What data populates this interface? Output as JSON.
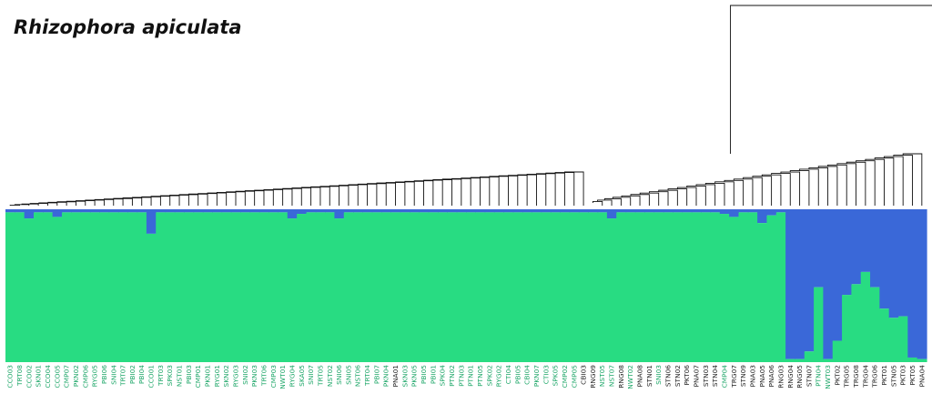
{
  "title": "Rhizophora apiculata",
  "chart_data": {
    "type": "bar",
    "subtype": "stacked-proportion bar plot (STRUCTURE K=2) with hierarchical clustering dendrogram above",
    "ylim": [
      0,
      1
    ],
    "colors": {
      "cluster_green": "#28dc82",
      "cluster_blue": "#3a68d8",
      "label_green": "#1aa566",
      "label_dark": "#222222"
    },
    "categories": [
      "CCO03",
      "TRT08",
      "CCO02",
      "SKN01",
      "CCO04",
      "CCO05",
      "CMP07",
      "PKN02",
      "CMP06",
      "RYG05",
      "PBI06",
      "SNI04",
      "TRT07",
      "PBI02",
      "PBI04",
      "CCO01",
      "TRT03",
      "SPK03",
      "NST01",
      "PBI03",
      "CMP01",
      "PKN01",
      "RYG01",
      "SKN02",
      "RYG03",
      "SNI02",
      "PKN03",
      "TRT06",
      "CMP03",
      "NWT01",
      "RYG04",
      "SKA05",
      "SNI07",
      "TRT05",
      "NST02",
      "SNI06",
      "SNI05",
      "NST06",
      "TRT04",
      "PBI07",
      "PKN04",
      "PNA01",
      "SKN03",
      "PKN05",
      "PBI05",
      "PBI01",
      "SPK04",
      "PTN02",
      "PTN03",
      "PTN01",
      "PTN05",
      "SPK02",
      "RYG02",
      "CTI04",
      "PBI05",
      "CBI04",
      "PKN07",
      "CTI03",
      "SPK05",
      "CMP02",
      "CMP05",
      "CBI03",
      "RNG09",
      "NST05",
      "NST07",
      "RNG08",
      "NWT02",
      "PNA08",
      "STN01",
      "SNI03",
      "STN06",
      "STN02",
      "PKT06",
      "PNA07",
      "STN03",
      "STN04",
      "CMP04",
      "TRG07",
      "STN09",
      "PNA03",
      "PNA05",
      "PNA06",
      "RNG03",
      "RNG04",
      "RNG05",
      "STN07",
      "PTN04",
      "NWT03",
      "PKT02",
      "TRG05",
      "TRG08",
      "TRG04",
      "TRG06",
      "PKT01",
      "STN05",
      "PKT03",
      "PKT05",
      "PNA04"
    ],
    "label_group": [
      0,
      0,
      0,
      0,
      0,
      0,
      0,
      0,
      0,
      0,
      0,
      0,
      0,
      0,
      0,
      0,
      0,
      0,
      0,
      0,
      0,
      0,
      0,
      0,
      0,
      0,
      0,
      0,
      0,
      0,
      0,
      0,
      0,
      0,
      0,
      0,
      0,
      0,
      0,
      0,
      0,
      1,
      0,
      0,
      0,
      0,
      0,
      0,
      0,
      0,
      0,
      0,
      0,
      0,
      0,
      0,
      0,
      0,
      0,
      0,
      0,
      1,
      1,
      0,
      0,
      1,
      0,
      1,
      1,
      0,
      1,
      1,
      1,
      1,
      1,
      1,
      0,
      1,
      1,
      1,
      1,
      1,
      1,
      1,
      1,
      1,
      0,
      0,
      1,
      1,
      1,
      1,
      1,
      1,
      1,
      1,
      1,
      1
    ],
    "series": [
      {
        "name": "",
        "color": "#28dc82",
        "values": [
          0.98,
          0.98,
          0.94,
          0.98,
          0.98,
          0.95,
          0.98,
          0.98,
          0.98,
          0.98,
          0.98,
          0.98,
          0.98,
          0.98,
          0.98,
          0.84,
          0.98,
          0.98,
          0.98,
          0.98,
          0.98,
          0.98,
          0.98,
          0.98,
          0.98,
          0.98,
          0.98,
          0.98,
          0.98,
          0.98,
          0.94,
          0.97,
          0.98,
          0.98,
          0.98,
          0.94,
          0.98,
          0.98,
          0.98,
          0.98,
          0.98,
          0.98,
          0.98,
          0.98,
          0.98,
          0.98,
          0.98,
          0.98,
          0.98,
          0.98,
          0.98,
          0.98,
          0.98,
          0.98,
          0.98,
          0.98,
          0.98,
          0.98,
          0.98,
          0.98,
          0.98,
          0.98,
          0.98,
          0.98,
          0.94,
          0.98,
          0.98,
          0.98,
          0.98,
          0.98,
          0.98,
          0.98,
          0.98,
          0.98,
          0.98,
          0.98,
          0.97,
          0.95,
          0.98,
          0.98,
          0.91,
          0.96,
          0.98,
          0.02,
          0.02,
          0.07,
          0.49,
          0.02,
          0.14,
          0.44,
          0.51,
          0.59,
          0.49,
          0.35,
          0.29,
          0.3,
          0.03,
          0.02
        ]
      },
      {
        "name": "",
        "color": "#3a68d8",
        "values": [
          0.02,
          0.02,
          0.06,
          0.02,
          0.02,
          0.05,
          0.02,
          0.02,
          0.02,
          0.02,
          0.02,
          0.02,
          0.02,
          0.02,
          0.02,
          0.16,
          0.02,
          0.02,
          0.02,
          0.02,
          0.02,
          0.02,
          0.02,
          0.02,
          0.02,
          0.02,
          0.02,
          0.02,
          0.02,
          0.02,
          0.06,
          0.03,
          0.02,
          0.02,
          0.02,
          0.06,
          0.02,
          0.02,
          0.02,
          0.02,
          0.02,
          0.02,
          0.02,
          0.02,
          0.02,
          0.02,
          0.02,
          0.02,
          0.02,
          0.02,
          0.02,
          0.02,
          0.02,
          0.02,
          0.02,
          0.02,
          0.02,
          0.02,
          0.02,
          0.02,
          0.02,
          0.02,
          0.02,
          0.02,
          0.06,
          0.02,
          0.02,
          0.02,
          0.02,
          0.02,
          0.02,
          0.02,
          0.02,
          0.02,
          0.02,
          0.02,
          0.03,
          0.05,
          0.02,
          0.02,
          0.09,
          0.04,
          0.02,
          0.98,
          0.98,
          0.93,
          0.51,
          0.98,
          0.86,
          0.56,
          0.49,
          0.41,
          0.51,
          0.65,
          0.71,
          0.7,
          0.97,
          0.98
        ]
      }
    ],
    "dendrogram": {
      "type": "hierarchical-clustering",
      "leaf_order": "same as categories"
    }
  }
}
